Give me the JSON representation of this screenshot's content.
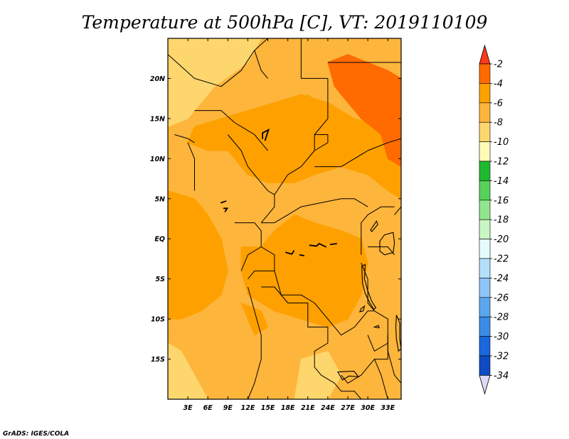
{
  "chart_data": {
    "type": "heatmap",
    "title": "Temperature at 500hPa [C], VT: 2019110109",
    "credit": "GrADS: IGES/COLA",
    "xlim": [
      0,
      35
    ],
    "ylim": [
      -20,
      25
    ],
    "x_ticks": [
      {
        "value": 3,
        "label": "3E"
      },
      {
        "value": 6,
        "label": "6E"
      },
      {
        "value": 9,
        "label": "9E"
      },
      {
        "value": 12,
        "label": "12E"
      },
      {
        "value": 15,
        "label": "15E"
      },
      {
        "value": 18,
        "label": "18E"
      },
      {
        "value": 21,
        "label": "21E"
      },
      {
        "value": 24,
        "label": "24E"
      },
      {
        "value": 27,
        "label": "27E"
      },
      {
        "value": 30,
        "label": "30E"
      },
      {
        "value": 33,
        "label": "33E"
      }
    ],
    "y_ticks": [
      {
        "value": 20,
        "label": "20N"
      },
      {
        "value": 15,
        "label": "15N"
      },
      {
        "value": 10,
        "label": "10N"
      },
      {
        "value": 5,
        "label": "5N"
      },
      {
        "value": 0,
        "label": "EQ"
      },
      {
        "value": -5,
        "label": "5S"
      },
      {
        "value": -10,
        "label": "10S"
      },
      {
        "value": -15,
        "label": "15S"
      }
    ],
    "colorbar": {
      "top_triangle_color": "#ff3a1a",
      "bottom_triangle_color": "#ded8f4",
      "labels": [
        "-2",
        "-4",
        "-6",
        "-8",
        "-10",
        "-12",
        "-14",
        "-16",
        "-18",
        "-20",
        "-22",
        "-24",
        "-26",
        "-28",
        "-30",
        "-32",
        "-34"
      ],
      "colors": [
        "#ff6b00",
        "#fea000",
        "#fdb53b",
        "#fdd66d",
        "#fefab8",
        "#1fb931",
        "#56d15c",
        "#91e58e",
        "#c8f6c4",
        "#e6fbff",
        "#b4dffb",
        "#8ec4f6",
        "#5aa7ef",
        "#3a8ce8",
        "#1a67de",
        "#0f4bc3",
        "#0c117a"
      ]
    },
    "regions": [
      {
        "level": "-8 to -10",
        "color": "#fdd66d",
        "polygons": [
          [
            [
              0,
              25
            ],
            [
              14,
              25
            ],
            [
              12,
              22
            ],
            [
              7,
              19
            ],
            [
              3,
              15
            ],
            [
              0,
              14
            ]
          ],
          [
            [
              0,
              -13
            ],
            [
              2,
              -14
            ],
            [
              4,
              -17
            ],
            [
              6,
              -20
            ],
            [
              0,
              -20
            ]
          ],
          [
            [
              20,
              -15
            ],
            [
              24,
              -14
            ],
            [
              26,
              -17
            ],
            [
              24,
              -20
            ],
            [
              19,
              -20
            ]
          ]
        ]
      },
      {
        "level": "-4 to -6",
        "color": "#fea000",
        "polygons": [
          [
            [
              0,
              6
            ],
            [
              4,
              5
            ],
            [
              6,
              3
            ],
            [
              8,
              0
            ],
            [
              9,
              -4
            ],
            [
              8,
              -7
            ],
            [
              5,
              -9
            ],
            [
              2,
              -10
            ],
            [
              0,
              -10
            ]
          ],
          [
            [
              11,
              -1
            ],
            [
              14,
              -1
            ],
            [
              16,
              1
            ],
            [
              19,
              3
            ],
            [
              22,
              2
            ],
            [
              26,
              1
            ],
            [
              29,
              0
            ],
            [
              30,
              -3
            ],
            [
              29,
              -7
            ],
            [
              27,
              -10
            ],
            [
              24,
              -11
            ],
            [
              20,
              -10
            ],
            [
              16,
              -9
            ],
            [
              12,
              -7
            ],
            [
              11,
              -4
            ]
          ],
          [
            [
              3,
              12
            ],
            [
              6,
              11
            ],
            [
              9,
              11
            ],
            [
              12,
              8
            ],
            [
              15,
              7
            ],
            [
              19,
              7
            ],
            [
              22,
              8
            ],
            [
              26,
              9
            ],
            [
              30,
              8
            ],
            [
              33,
              6
            ],
            [
              35,
              5
            ],
            [
              35,
              12
            ],
            [
              32,
              14
            ],
            [
              28,
              15
            ],
            [
              24,
              17
            ],
            [
              20,
              18
            ],
            [
              16,
              17
            ],
            [
              12,
              16
            ],
            [
              8,
              15
            ],
            [
              4,
              14
            ]
          ],
          [
            [
              19,
              15
            ],
            [
              22,
              14
            ],
            [
              24,
              16
            ],
            [
              21,
              18
            ]
          ],
          [
            [
              11,
              -8
            ],
            [
              14,
              -9
            ],
            [
              15,
              -11
            ],
            [
              13,
              -12
            ]
          ],
          [
            [
              22,
              -6
            ],
            [
              25,
              -7
            ],
            [
              26,
              -9
            ],
            [
              24,
              -10
            ],
            [
              22,
              -9
            ]
          ]
        ]
      },
      {
        "level": "-2 to -4",
        "color": "#ff6b00",
        "polygons": [
          [
            [
              24,
              22
            ],
            [
              27,
              23
            ],
            [
              30,
              22
            ],
            [
              33,
              21
            ],
            [
              35,
              20
            ],
            [
              35,
              9
            ],
            [
              33,
              10
            ],
            [
              32,
              13
            ],
            [
              29,
              15
            ],
            [
              27,
              17
            ],
            [
              25,
              19
            ]
          ]
        ]
      }
    ],
    "boundaries": [
      [
        [
          0,
          23
        ],
        [
          4,
          20
        ],
        [
          8,
          19
        ],
        [
          11,
          21
        ],
        [
          13,
          23.5
        ],
        [
          15,
          25
        ]
      ],
      [
        [
          13,
          23.5
        ],
        [
          14,
          21
        ],
        [
          15,
          20
        ]
      ],
      [
        [
          20,
          25
        ],
        [
          20,
          20
        ],
        [
          24,
          20
        ]
      ],
      [
        [
          24,
          20
        ],
        [
          24,
          15
        ],
        [
          22,
          13
        ],
        [
          22,
          11
        ]
      ],
      [
        [
          24,
          22
        ],
        [
          35,
          22
        ]
      ],
      [
        [
          4,
          16
        ],
        [
          6,
          16
        ],
        [
          8,
          16
        ],
        [
          10,
          14.5
        ],
        [
          12,
          13.5
        ],
        [
          13,
          13
        ],
        [
          14,
          12
        ],
        [
          15,
          11
        ]
      ],
      [
        [
          1,
          13
        ],
        [
          3,
          12.5
        ],
        [
          4,
          12
        ]
      ],
      [
        [
          3,
          12
        ],
        [
          4,
          10
        ],
        [
          4,
          8
        ],
        [
          4,
          6
        ]
      ],
      [
        [
          9,
          13
        ],
        [
          11,
          11
        ],
        [
          12,
          9
        ],
        [
          13,
          8
        ],
        [
          14,
          7
        ],
        [
          15,
          6
        ],
        [
          16,
          5.5
        ],
        [
          16,
          4
        ],
        [
          15,
          3
        ],
        [
          14,
          2
        ]
      ],
      [
        [
          14,
          2
        ],
        [
          16,
          2
        ],
        [
          18,
          3
        ],
        [
          20,
          4
        ],
        [
          23,
          4.5
        ],
        [
          26,
          5
        ],
        [
          28,
          5
        ],
        [
          30,
          4
        ]
      ],
      [
        [
          16,
          5.5
        ],
        [
          18,
          8
        ],
        [
          20,
          9
        ],
        [
          22,
          11
        ]
      ],
      [
        [
          22,
          9
        ],
        [
          24,
          9
        ],
        [
          26,
          9
        ],
        [
          28,
          10
        ],
        [
          30,
          11
        ],
        [
          33,
          12
        ],
        [
          35,
          12.5
        ]
      ],
      [
        [
          22,
          11
        ],
        [
          24,
          12
        ],
        [
          24,
          13
        ],
        [
          22,
          13
        ]
      ],
      [
        [
          10,
          2
        ],
        [
          13,
          2
        ],
        [
          14,
          1
        ],
        [
          14,
          -1
        ],
        [
          12,
          -2
        ],
        [
          11,
          -4
        ]
      ],
      [
        [
          14,
          -1
        ],
        [
          16,
          -2
        ],
        [
          16,
          -4
        ],
        [
          13,
          -4
        ],
        [
          12,
          -5
        ]
      ],
      [
        [
          16,
          -4
        ],
        [
          17,
          -7
        ],
        [
          20,
          -7
        ],
        [
          22,
          -8
        ],
        [
          24,
          -10
        ],
        [
          26,
          -12
        ],
        [
          28,
          -11
        ],
        [
          30,
          -9
        ],
        [
          31,
          -9
        ]
      ],
      [
        [
          12,
          -6
        ],
        [
          13,
          -9
        ],
        [
          14,
          -12
        ],
        [
          14,
          -15
        ],
        [
          13,
          -18
        ],
        [
          12,
          -20
        ]
      ],
      [
        [
          14,
          -6
        ],
        [
          16,
          -6
        ],
        [
          18,
          -8
        ],
        [
          21,
          -8
        ],
        [
          21,
          -11
        ],
        [
          24,
          -11
        ],
        [
          24,
          -13
        ],
        [
          22,
          -14
        ],
        [
          22,
          -16
        ],
        [
          23,
          -17
        ],
        [
          25,
          -18
        ],
        [
          26,
          -19
        ],
        [
          28,
          -19
        ],
        [
          29,
          -20
        ]
      ],
      [
        [
          29,
          -2
        ],
        [
          29,
          2
        ],
        [
          30,
          3
        ],
        [
          32,
          4
        ],
        [
          33,
          4
        ],
        [
          34,
          4
        ]
      ],
      [
        [
          30,
          -1
        ],
        [
          31,
          -1
        ],
        [
          33,
          -1
        ],
        [
          34,
          -2
        ]
      ],
      [
        [
          29,
          -3
        ],
        [
          30,
          -5
        ],
        [
          30,
          -8
        ],
        [
          31,
          -9
        ]
      ],
      [
        [
          31,
          -9
        ],
        [
          33,
          -10
        ],
        [
          33,
          -14
        ],
        [
          34,
          -17
        ],
        [
          35,
          -18
        ]
      ],
      [
        [
          30,
          -12
        ],
        [
          31,
          -14
        ],
        [
          33,
          -13
        ]
      ],
      [
        [
          26,
          -17
        ],
        [
          27,
          -18
        ],
        [
          29,
          -17
        ],
        [
          30,
          -16
        ],
        [
          31,
          -15
        ],
        [
          33,
          -15
        ],
        [
          33,
          -12
        ]
      ],
      [
        [
          31,
          -15
        ],
        [
          32,
          -17
        ],
        [
          33,
          -20
        ]
      ],
      [
        [
          34,
          3
        ],
        [
          35,
          4
        ]
      ]
    ],
    "lakes": [
      [
        [
          32.5,
          0.5
        ],
        [
          33.8,
          0.8
        ],
        [
          34,
          -0.5
        ],
        [
          33.8,
          -1.7
        ],
        [
          32.5,
          -2
        ],
        [
          31.8,
          -1.5
        ],
        [
          31.8,
          -0.3
        ]
      ],
      [
        [
          29.1,
          -3.4
        ],
        [
          29.6,
          -3.2
        ],
        [
          29.5,
          -5
        ],
        [
          30,
          -6.5
        ],
        [
          30.6,
          -7.8
        ],
        [
          31.2,
          -8.6
        ],
        [
          30.9,
          -8.8
        ],
        [
          30.3,
          -8
        ],
        [
          29.6,
          -6.8
        ],
        [
          29.2,
          -5.5
        ]
      ],
      [
        [
          30.4,
          1.1
        ],
        [
          31.3,
          2.2
        ],
        [
          31.5,
          1.8
        ],
        [
          30.6,
          0.9
        ]
      ],
      [
        [
          34.3,
          -9.5
        ],
        [
          34.8,
          -10.5
        ],
        [
          34.8,
          -12.5
        ],
        [
          35,
          -13.7
        ],
        [
          34.6,
          -14
        ],
        [
          34.3,
          -12.5
        ],
        [
          34.2,
          -11
        ]
      ],
      [
        [
          29,
          -8.7
        ],
        [
          29.5,
          -8.4
        ],
        [
          29.3,
          -9
        ],
        [
          28.8,
          -9.1
        ]
      ],
      [
        [
          25.5,
          -16.6
        ],
        [
          27.9,
          -16.5
        ],
        [
          28.6,
          -17.2
        ],
        [
          27.2,
          -17.1
        ],
        [
          26.2,
          -17.6
        ]
      ],
      [
        [
          31,
          -11
        ],
        [
          31.7,
          -11.1
        ],
        [
          31.6,
          -10.8
        ]
      ]
    ],
    "rivers": [
      [
        [
          17.7,
          -1.7
        ],
        [
          18.6,
          -1.9
        ],
        [
          18.9,
          -1.5
        ]
      ],
      [
        [
          21.3,
          -0.8
        ],
        [
          22.3,
          -0.9
        ],
        [
          22.7,
          -0.6
        ],
        [
          23.7,
          -1.0
        ]
      ],
      [
        [
          19.8,
          -2.0
        ],
        [
          20.4,
          -2.1
        ]
      ],
      [
        [
          24.4,
          -0.7
        ],
        [
          25.3,
          -0.6
        ]
      ],
      [
        [
          14.6,
          12.3
        ],
        [
          15.1,
          13.6
        ],
        [
          14.2,
          13.2
        ],
        [
          14.2,
          12.5
        ]
      ],
      [
        [
          8,
          4.5
        ],
        [
          8.7,
          4.7
        ]
      ],
      [
        [
          8.6,
          3.4
        ],
        [
          8.9,
          3.8
        ],
        [
          8.4,
          3.8
        ]
      ]
    ]
  }
}
